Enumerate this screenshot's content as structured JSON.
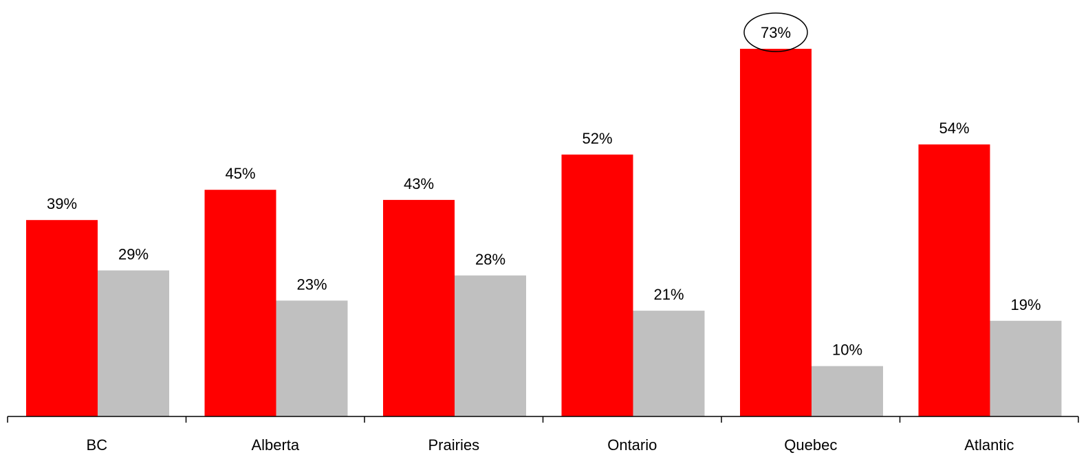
{
  "chart_data": {
    "type": "bar",
    "categories": [
      "BC",
      "Alberta",
      "Prairies",
      "Ontario",
      "Quebec",
      "Atlantic"
    ],
    "series": [
      {
        "values": [
          39,
          45,
          43,
          52,
          73,
          54
        ],
        "labels": [
          "39%",
          "45%",
          "43%",
          "52%",
          "73%",
          "54%"
        ],
        "color": "#ff0000"
      },
      {
        "values": [
          29,
          23,
          28,
          21,
          10,
          19
        ],
        "labels": [
          "29%",
          "23%",
          "28%",
          "21%",
          "10%",
          "19%"
        ],
        "color": "#c0c0c0"
      }
    ],
    "ylim": [
      0,
      73
    ],
    "grid": false,
    "legend": "none",
    "highlight": {
      "series": 0,
      "category": "Quebec"
    }
  }
}
